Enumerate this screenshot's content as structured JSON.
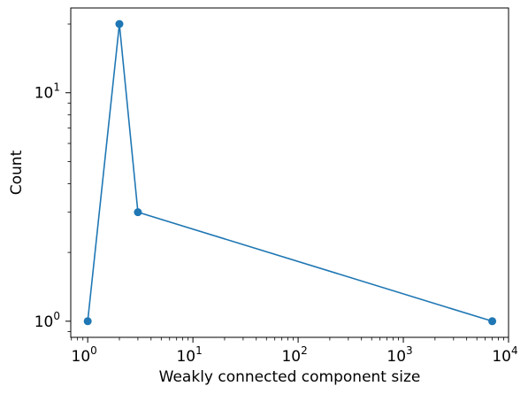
{
  "chart_data": {
    "type": "line",
    "title": "",
    "xlabel": "Weakly connected component size",
    "ylabel": "Count",
    "xscale": "log",
    "yscale": "log",
    "xlim": [
      0.69,
      10000
    ],
    "ylim": [
      0.85,
      23.5
    ],
    "grid": false,
    "legend": "none",
    "x_ticks": [
      {
        "base": "10",
        "exp": "0",
        "value": 1
      },
      {
        "base": "10",
        "exp": "1",
        "value": 10
      },
      {
        "base": "10",
        "exp": "2",
        "value": 100
      },
      {
        "base": "10",
        "exp": "3",
        "value": 1000
      },
      {
        "base": "10",
        "exp": "4",
        "value": 10000
      }
    ],
    "y_ticks": [
      {
        "base": "10",
        "exp": "0",
        "value": 1
      },
      {
        "base": "10",
        "exp": "1",
        "value": 10
      }
    ],
    "series": [
      {
        "color": "#1f77b4",
        "marker": "circle",
        "points": [
          {
            "x": 1,
            "y": 1
          },
          {
            "x": 2,
            "y": 20
          },
          {
            "x": 3,
            "y": 3
          },
          {
            "x": 7000,
            "y": 1
          }
        ]
      }
    ]
  }
}
